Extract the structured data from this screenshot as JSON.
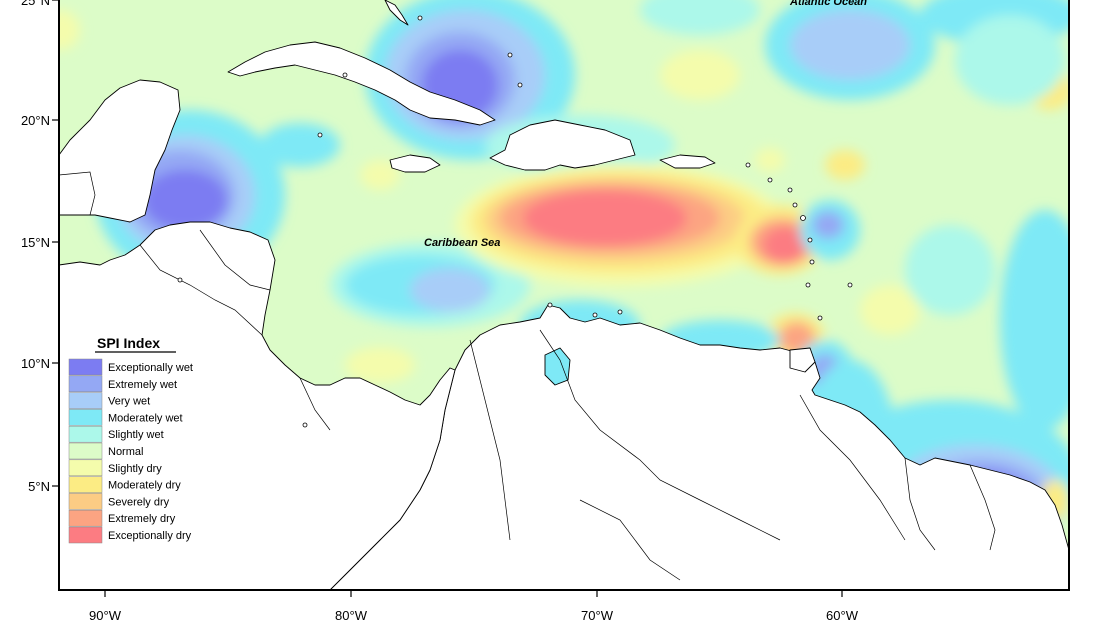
{
  "map": {
    "x_ticks": [
      "90°W",
      "80°W",
      "70°W",
      "60°W"
    ],
    "y_ticks": [
      "25°N",
      "20°N",
      "15°N",
      "10°N",
      "5°N"
    ],
    "labels": {
      "atlantic": "Atlantic Ocean",
      "caribbean": "Caribbean Sea"
    }
  },
  "legend": {
    "title": "SPI Index",
    "items": [
      {
        "label": "Exceptionally wet",
        "color": "#7c7cf2"
      },
      {
        "label": "Extremely wet",
        "color": "#94a8f4"
      },
      {
        "label": "Very wet",
        "color": "#a8cdf8"
      },
      {
        "label": "Moderately wet",
        "color": "#7ee9f6"
      },
      {
        "label": "Slightly wet",
        "color": "#acf8ea"
      },
      {
        "label": "Normal",
        "color": "#dcfcc8"
      },
      {
        "label": "Slightly dry",
        "color": "#f4fcac"
      },
      {
        "label": "Moderately dry",
        "color": "#fcec84"
      },
      {
        "label": "Severely dry",
        "color": "#fccc84"
      },
      {
        "label": "Extremely dry",
        "color": "#fca482"
      },
      {
        "label": "Exceptionally dry",
        "color": "#fc7c82"
      }
    ]
  }
}
